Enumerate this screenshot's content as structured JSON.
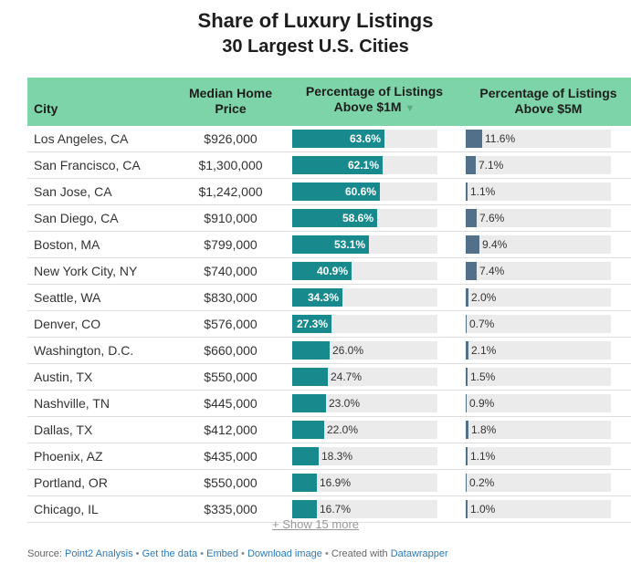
{
  "title": "Share of Luxury Listings",
  "subtitle": "30 Largest U.S. Cities",
  "columns": {
    "city": "City",
    "price_line1": "Median Home",
    "price_line2": "Price",
    "m1_line1": "Percentage of Listings",
    "m1_line2": "Above $1M",
    "m1_sort": "▼",
    "m5_line1": "Percentage of Listings",
    "m5_line2": "Above $5M"
  },
  "colors": {
    "header_bg": "#7dd4a8",
    "bar_1m": "#188a8d",
    "bar_5m": "#52708a",
    "bar_bg": "#ebebeb"
  },
  "chart_data": {
    "type": "table",
    "rows": [
      {
        "city": "Los Angeles, CA",
        "price": "$926,000",
        "pct_1m": 63.6,
        "pct_1m_label": "63.6%",
        "pct_5m": 11.6,
        "pct_5m_label": "11.6%"
      },
      {
        "city": "San Francisco, CA",
        "price": "$1,300,000",
        "pct_1m": 62.1,
        "pct_1m_label": "62.1%",
        "pct_5m": 7.1,
        "pct_5m_label": "7.1%"
      },
      {
        "city": "San Jose, CA",
        "price": "$1,242,000",
        "pct_1m": 60.6,
        "pct_1m_label": "60.6%",
        "pct_5m": 1.1,
        "pct_5m_label": "1.1%"
      },
      {
        "city": "San Diego, CA",
        "price": "$910,000",
        "pct_1m": 58.6,
        "pct_1m_label": "58.6%",
        "pct_5m": 7.6,
        "pct_5m_label": "7.6%"
      },
      {
        "city": "Boston, MA",
        "price": "$799,000",
        "pct_1m": 53.1,
        "pct_1m_label": "53.1%",
        "pct_5m": 9.4,
        "pct_5m_label": "9.4%"
      },
      {
        "city": "New York City, NY",
        "price": "$740,000",
        "pct_1m": 40.9,
        "pct_1m_label": "40.9%",
        "pct_5m": 7.4,
        "pct_5m_label": "7.4%"
      },
      {
        "city": "Seattle, WA",
        "price": "$830,000",
        "pct_1m": 34.3,
        "pct_1m_label": "34.3%",
        "pct_5m": 2.0,
        "pct_5m_label": "2.0%"
      },
      {
        "city": "Denver, CO",
        "price": "$576,000",
        "pct_1m": 27.3,
        "pct_1m_label": "27.3%",
        "pct_5m": 0.7,
        "pct_5m_label": "0.7%"
      },
      {
        "city": "Washington, D.C.",
        "price": "$660,000",
        "pct_1m": 26.0,
        "pct_1m_label": "26.0%",
        "pct_5m": 2.1,
        "pct_5m_label": "2.1%"
      },
      {
        "city": "Austin, TX",
        "price": "$550,000",
        "pct_1m": 24.7,
        "pct_1m_label": "24.7%",
        "pct_5m": 1.5,
        "pct_5m_label": "1.5%"
      },
      {
        "city": "Nashville, TN",
        "price": "$445,000",
        "pct_1m": 23.0,
        "pct_1m_label": "23.0%",
        "pct_5m": 0.9,
        "pct_5m_label": "0.9%"
      },
      {
        "city": "Dallas, TX",
        "price": "$412,000",
        "pct_1m": 22.0,
        "pct_1m_label": "22.0%",
        "pct_5m": 1.8,
        "pct_5m_label": "1.8%"
      },
      {
        "city": "Phoenix, AZ",
        "price": "$435,000",
        "pct_1m": 18.3,
        "pct_1m_label": "18.3%",
        "pct_5m": 1.1,
        "pct_5m_label": "1.1%"
      },
      {
        "city": "Portland, OR",
        "price": "$550,000",
        "pct_1m": 16.9,
        "pct_1m_label": "16.9%",
        "pct_5m": 0.2,
        "pct_5m_label": "0.2%"
      },
      {
        "city": "Chicago, IL",
        "price": "$335,000",
        "pct_1m": 16.7,
        "pct_1m_label": "16.7%",
        "pct_5m": 1.0,
        "pct_5m_label": "1.0%"
      }
    ]
  },
  "show_more": "+ Show 15 more",
  "footer": {
    "source_prefix": "Source:",
    "source": "Point2 Analysis",
    "sep": "•",
    "get_data": "Get the data",
    "embed": "Embed",
    "download": "Download image",
    "created_with": "Created with",
    "datawrapper": "Datawrapper"
  }
}
